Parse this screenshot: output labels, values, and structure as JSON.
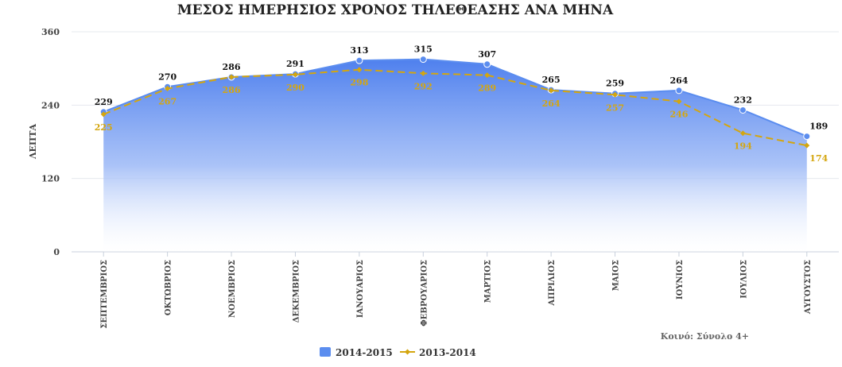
{
  "chart_data": {
    "type": "area",
    "title": "ΜΕΣΟΣ ΗΜΕΡΗΣΙΟΣ ΧΡΟΝΟΣ ΤΗΛΕΘΕΑΣΗΣ ΑΝΑ ΜΗΝΑ",
    "ylabel": "ΛΕΠΤΑ",
    "xlabel": "",
    "ylim": [
      0,
      360
    ],
    "yticks": [
      "0",
      "120",
      "240",
      "360"
    ],
    "grid": true,
    "legend_position": "bottom",
    "note": "Κοινό: Σύνολο 4+",
    "categories": [
      "ΣΕΠΤΕΜΒΡΙΟΣ",
      "ΟΚΤΩΒΡΙΟΣ",
      "ΝΟΕΜΒΡΙΟΣ",
      "ΔΕΚΕΜΒΡΙΟΣ",
      "ΙΑΝΟΥΑΡΙΟΣ",
      "ΦΕΒΡΟΥΑΡΙΟΣ",
      "ΜΑΡΤΙΟΣ",
      "ΑΠΡΙΛΙΟΣ",
      "ΜΑΙΟΣ",
      "ΙΟΥΝΙΟΣ",
      "ΙΟΥΛΙΟΣ",
      "ΑΥΓΟΥΣΤΟΣ"
    ],
    "series": [
      {
        "name": "2014-2015",
        "style": "area",
        "color": "#5b8def",
        "label_color": "#111111",
        "values": [
          229,
          270,
          286,
          291,
          313,
          315,
          307,
          265,
          259,
          264,
          232,
          189
        ]
      },
      {
        "name": "2013-2014",
        "style": "dashed-line",
        "color": "#d4a60f",
        "label_color": "#d4a60f",
        "values": [
          225,
          267,
          286,
          290,
          298,
          292,
          289,
          264,
          257,
          246,
          194,
          174
        ]
      }
    ]
  }
}
